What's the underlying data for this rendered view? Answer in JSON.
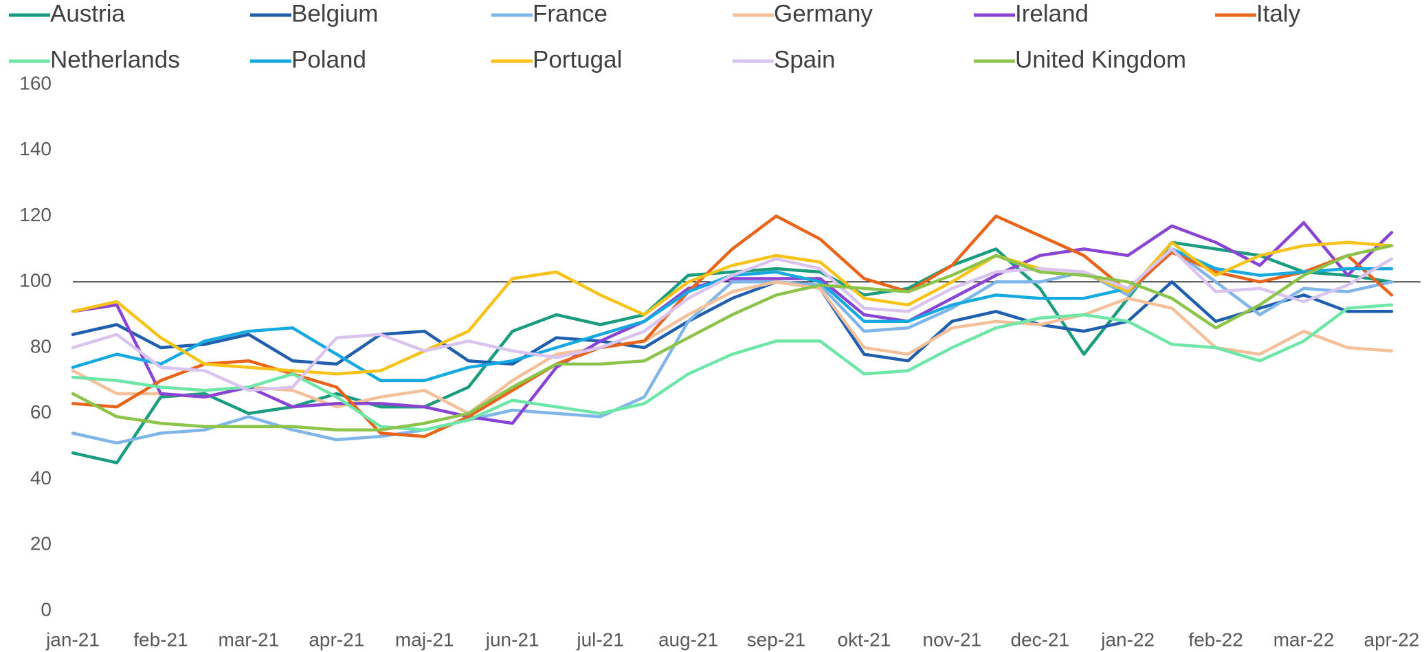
{
  "chart_data": {
    "type": "line",
    "categories": [
      "jan-21",
      null,
      "feb-21",
      null,
      "mar-21",
      null,
      "apr-21",
      null,
      "maj-21",
      null,
      "jun-21",
      null,
      "jul-21",
      null,
      "aug-21",
      null,
      "sep-21",
      null,
      "okt-21",
      null,
      "nov-21",
      null,
      "dec-21",
      null,
      "jan-22",
      null,
      "feb-22",
      null,
      "mar-22",
      null,
      "apr-22"
    ],
    "series": [
      {
        "name": "Austria",
        "color": "#1a9c7e",
        "values": [
          48,
          45,
          65,
          66,
          60,
          62,
          66,
          62,
          62,
          68,
          85,
          90,
          87,
          90,
          102,
          103,
          104,
          103,
          96,
          98,
          105,
          110,
          98,
          78,
          95,
          112,
          110,
          108,
          103,
          102,
          100
        ]
      },
      {
        "name": "Belgium",
        "color": "#1f5fad",
        "values": [
          84,
          87,
          80,
          81,
          84,
          76,
          75,
          84,
          85,
          76,
          75,
          83,
          82,
          80,
          88,
          95,
          100,
          98,
          78,
          76,
          88,
          91,
          87,
          85,
          88,
          100,
          88,
          92,
          96,
          91,
          91
        ]
      },
      {
        "name": "France",
        "color": "#7fb5e8",
        "values": [
          54,
          51,
          54,
          55,
          59,
          55,
          52,
          53,
          55,
          58,
          61,
          60,
          59,
          65,
          88,
          100,
          100,
          99,
          85,
          86,
          92,
          100,
          100,
          103,
          96,
          110,
          100,
          90,
          98,
          97,
          100
        ]
      },
      {
        "name": "Germany",
        "color": "#f4c09a",
        "values": [
          73,
          66,
          66,
          65,
          68,
          67,
          62,
          65,
          67,
          60,
          70,
          78,
          80,
          82,
          90,
          97,
          100,
          98,
          80,
          78,
          86,
          88,
          87,
          90,
          95,
          92,
          80,
          78,
          85,
          80,
          79
        ]
      },
      {
        "name": "Ireland",
        "color": "#8a44d4",
        "values": [
          91,
          93,
          66,
          65,
          68,
          62,
          63,
          63,
          62,
          59,
          57,
          74,
          82,
          88,
          98,
          101,
          101,
          101,
          90,
          88,
          95,
          102,
          108,
          110,
          108,
          117,
          112,
          105,
          118,
          102,
          115
        ]
      },
      {
        "name": "Italy",
        "color": "#e8641a",
        "values": [
          63,
          62,
          70,
          75,
          76,
          72,
          68,
          54,
          53,
          59,
          67,
          75,
          80,
          82,
          97,
          110,
          120,
          113,
          101,
          97,
          105,
          120,
          114,
          108,
          97,
          109,
          103,
          100,
          103,
          108,
          96
        ]
      },
      {
        "name": "Netherlands",
        "color": "#6ee6a8",
        "values": [
          71,
          70,
          68,
          67,
          68,
          72,
          65,
          56,
          55,
          58,
          64,
          62,
          60,
          63,
          72,
          78,
          82,
          82,
          72,
          73,
          80,
          86,
          89,
          90,
          88,
          81,
          80,
          76,
          82,
          92,
          93
        ]
      },
      {
        "name": "Poland",
        "color": "#16a9e0",
        "values": [
          74,
          78,
          75,
          82,
          85,
          86,
          78,
          70,
          70,
          74,
          76,
          80,
          84,
          88,
          97,
          102,
          103,
          100,
          88,
          88,
          93,
          96,
          95,
          95,
          98,
          110,
          104,
          102,
          103,
          104,
          104
        ]
      },
      {
        "name": "Portugal",
        "color": "#f7c31a",
        "values": [
          91,
          94,
          83,
          75,
          74,
          73,
          72,
          73,
          79,
          85,
          101,
          103,
          96,
          90,
          100,
          105,
          108,
          106,
          95,
          93,
          100,
          108,
          104,
          103,
          97,
          112,
          102,
          108,
          111,
          112,
          111
        ]
      },
      {
        "name": "Spain",
        "color": "#d9c3ef",
        "values": [
          80,
          84,
          74,
          73,
          67,
          68,
          83,
          84,
          79,
          82,
          79,
          77,
          80,
          85,
          95,
          102,
          107,
          104,
          92,
          91,
          98,
          103,
          104,
          103,
          98,
          110,
          97,
          98,
          94,
          99,
          107
        ]
      },
      {
        "name": "United Kingdom",
        "color": "#8cc34b",
        "values": [
          66,
          59,
          57,
          56,
          56,
          56,
          55,
          55,
          57,
          60,
          68,
          75,
          75,
          76,
          83,
          90,
          96,
          99,
          98,
          97,
          102,
          108,
          103,
          102,
          100,
          95,
          86,
          93,
          102,
          108,
          111
        ]
      }
    ],
    "ylim": [
      0,
      160
    ],
    "yticks": [
      0,
      20,
      40,
      60,
      80,
      100,
      120,
      140,
      160
    ],
    "reference_line": 100,
    "grid": false,
    "legend": "top"
  }
}
